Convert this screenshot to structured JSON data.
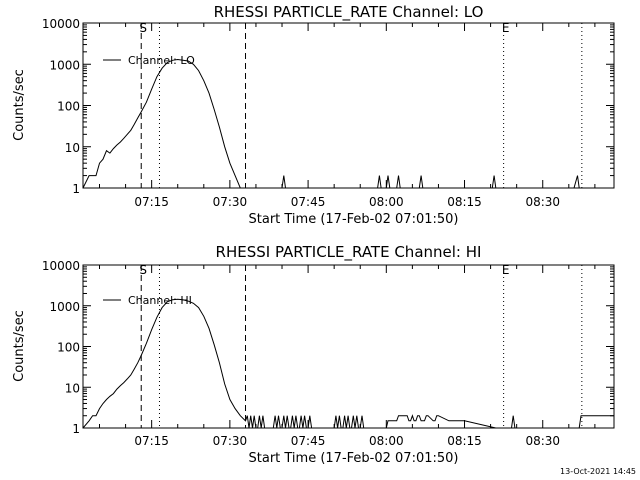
{
  "footer_timestamp": "13-Oct-2021 14:45",
  "colors": {
    "background": "#ffffff",
    "foreground": "#000000"
  },
  "chart_data": [
    {
      "type": "line",
      "title": "RHESSI PARTICLE_RATE Channel: LO",
      "xlabel": "Start Time (17-Feb-02 07:01:50)",
      "ylabel": "Counts/sec",
      "yscale": "log",
      "ylim": [
        1,
        10000
      ],
      "yticks": [
        1,
        10,
        100,
        1000,
        10000
      ],
      "ytick_labels": [
        "1",
        "10",
        "100",
        "1000",
        "10000"
      ],
      "xlim": [
        "07:01:50",
        "08:43:40"
      ],
      "xticks": [
        "07:15",
        "07:30",
        "07:45",
        "08:00",
        "08:15",
        "08:30"
      ],
      "series": [
        {
          "name": "Channel: LO",
          "x": [
            "07:01:50",
            "07:03:00",
            "07:03:40",
            "07:04:20",
            "07:05:00",
            "07:05:40",
            "07:06:20",
            "07:07:00",
            "07:07:40",
            "07:08:20",
            "07:09:00",
            "07:09:40",
            "07:10:20",
            "07:11:00",
            "07:11:40",
            "07:12:20",
            "07:13:00",
            "07:14:00",
            "07:15:00",
            "07:16:00",
            "07:17:00",
            "07:18:00",
            "07:19:00",
            "07:20:00",
            "07:21:00",
            "07:22:00",
            "07:23:00",
            "07:24:00",
            "07:25:00",
            "07:26:00",
            "07:27:00",
            "07:28:00",
            "07:29:00",
            "07:30:00",
            "07:31:00",
            "07:32:00",
            "07:32:30",
            "07:33:00",
            "07:35:00",
            "07:40:00",
            "07:40:20",
            "07:40:40",
            "07:45:00",
            "07:58:20",
            "07:58:40",
            "07:59:00",
            "08:00:00",
            "08:00:20",
            "08:00:40",
            "08:01:00",
            "08:02:00",
            "08:02:20",
            "08:02:40",
            "08:06:20",
            "08:06:40",
            "08:07:00",
            "08:20:20",
            "08:20:40",
            "08:21:00",
            "08:36:00",
            "08:36:40",
            "08:37:00",
            "08:43:40"
          ],
          "y": [
            1,
            2,
            2,
            2,
            4,
            5,
            8,
            7,
            9,
            11,
            13,
            16,
            20,
            25,
            35,
            50,
            70,
            120,
            250,
            500,
            800,
            1100,
            1250,
            1300,
            1250,
            1200,
            1000,
            700,
            400,
            200,
            80,
            30,
            10,
            4,
            2,
            1,
            1,
            1,
            1,
            1,
            2,
            1,
            1,
            1,
            2,
            1,
            1,
            2,
            1,
            1,
            1,
            2,
            1,
            1,
            2,
            1,
            1,
            2,
            1,
            1,
            2,
            1,
            1
          ]
        }
      ],
      "annotations": [
        {
          "text": "S",
          "x": "07:13:00",
          "line": "dashed"
        },
        {
          "text": "",
          "x": "07:16:30",
          "line": "dotted"
        },
        {
          "text": "",
          "x": "07:33:00",
          "line": "dashed"
        },
        {
          "text": "E",
          "x": "08:22:30",
          "line": "dotted"
        },
        {
          "text": "",
          "x": "08:37:30",
          "line": "dotted"
        }
      ],
      "legend": "top-left"
    },
    {
      "type": "line",
      "title": "RHESSI PARTICLE_RATE Channel: HI",
      "xlabel": "Start Time (17-Feb-02 07:01:50)",
      "ylabel": "Counts/sec",
      "yscale": "log",
      "ylim": [
        1,
        10000
      ],
      "yticks": [
        1,
        10,
        100,
        1000,
        10000
      ],
      "ytick_labels": [
        "1",
        "10",
        "100",
        "1000",
        "10000"
      ],
      "xlim": [
        "07:01:50",
        "08:43:40"
      ],
      "xticks": [
        "07:15",
        "07:30",
        "07:45",
        "08:00",
        "08:15",
        "08:30"
      ],
      "series": [
        {
          "name": "Channel: HI",
          "x": [
            "07:01:50",
            "07:03:00",
            "07:03:40",
            "07:04:20",
            "07:05:00",
            "07:05:40",
            "07:06:20",
            "07:07:00",
            "07:07:40",
            "07:08:20",
            "07:09:00",
            "07:09:40",
            "07:10:20",
            "07:11:00",
            "07:11:40",
            "07:12:20",
            "07:13:00",
            "07:14:00",
            "07:15:00",
            "07:16:00",
            "07:17:00",
            "07:18:00",
            "07:19:00",
            "07:20:00",
            "07:21:00",
            "07:22:00",
            "07:23:00",
            "07:24:00",
            "07:25:00",
            "07:26:00",
            "07:27:00",
            "07:28:00",
            "07:29:00",
            "07:30:00",
            "07:31:00",
            "07:32:00",
            "07:33:00",
            "07:33:20",
            "07:33:40",
            "07:34:00",
            "07:34:20",
            "07:34:40",
            "07:35:00",
            "07:35:20",
            "07:35:40",
            "07:36:00",
            "07:36:20",
            "07:36:40",
            "07:37:00",
            "07:38:20",
            "07:38:40",
            "07:39:00",
            "07:39:20",
            "07:39:40",
            "07:40:00",
            "07:40:20",
            "07:40:40",
            "07:41:00",
            "07:41:20",
            "07:41:40",
            "07:42:00",
            "07:42:20",
            "07:42:40",
            "07:43:00",
            "07:43:20",
            "07:43:40",
            "07:44:00",
            "07:44:20",
            "07:44:40",
            "07:45:00",
            "07:45:20",
            "07:45:40",
            "07:46:00",
            "07:50:00",
            "07:50:20",
            "07:50:40",
            "07:51:00",
            "07:51:20",
            "07:51:40",
            "07:52:00",
            "07:52:20",
            "07:52:40",
            "07:53:00",
            "07:53:20",
            "07:53:40",
            "07:54:00",
            "07:54:20",
            "07:54:40",
            "07:55:00",
            "07:55:20",
            "07:55:40",
            "07:56:00",
            "07:58:00",
            "08:00:00",
            "08:00:20",
            "08:00:40",
            "08:01:00",
            "08:02:00",
            "08:02:20",
            "08:02:40",
            "08:03:00",
            "08:04:00",
            "08:04:20",
            "08:04:40",
            "08:05:00",
            "08:05:20",
            "08:05:40",
            "08:06:00",
            "08:06:20",
            "08:06:40",
            "08:07:00",
            "08:07:20",
            "08:07:40",
            "08:08:00",
            "08:09:00",
            "08:09:20",
            "08:09:40",
            "08:10:00",
            "08:12:00",
            "08:15:00",
            "08:21:00",
            "08:24:00",
            "08:24:20",
            "08:24:40",
            "08:25:00",
            "08:30:00",
            "08:37:00",
            "08:37:20",
            "08:37:40",
            "08:38:00",
            "08:43:40"
          ],
          "y": [
            1,
            1.5,
            2,
            2,
            3,
            4,
            5,
            6,
            7,
            9,
            11,
            13,
            16,
            20,
            28,
            40,
            60,
            120,
            260,
            520,
            900,
            1250,
            1400,
            1450,
            1400,
            1300,
            1150,
            900,
            550,
            280,
            110,
            40,
            12,
            5,
            3,
            2,
            1.5,
            2,
            1,
            2,
            1,
            2,
            1,
            1,
            2,
            1,
            2,
            1,
            1,
            1,
            2,
            1,
            2,
            1,
            1,
            2,
            1,
            2,
            1,
            1,
            2,
            1,
            2,
            1,
            1,
            2,
            1,
            2,
            1,
            1,
            2,
            1,
            1,
            1,
            2,
            1,
            2,
            1,
            1,
            2,
            1,
            2,
            1,
            1,
            2,
            1,
            2,
            1,
            1,
            2,
            1,
            1,
            1,
            1,
            1.5,
            1.5,
            1.5,
            1.5,
            2,
            2,
            2,
            2,
            1.5,
            1.5,
            2,
            1.5,
            1.5,
            2,
            2,
            1.5,
            1.5,
            1.5,
            2,
            2,
            1.5,
            1.5,
            2,
            2,
            1.5,
            1.5,
            1,
            1,
            2,
            1,
            1,
            1,
            1,
            2,
            2,
            2,
            2
          ]
        }
      ],
      "annotations": [
        {
          "text": "S",
          "x": "07:13:00",
          "line": "dashed"
        },
        {
          "text": "",
          "x": "07:16:30",
          "line": "dotted"
        },
        {
          "text": "",
          "x": "07:33:00",
          "line": "dashed"
        },
        {
          "text": "E",
          "x": "08:22:30",
          "line": "dotted"
        },
        {
          "text": "",
          "x": "08:37:30",
          "line": "dotted"
        }
      ],
      "legend": "top-left"
    }
  ]
}
